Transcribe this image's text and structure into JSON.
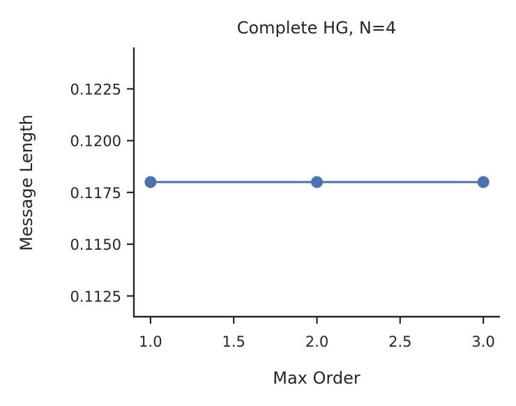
{
  "chart_data": {
    "type": "line",
    "title": "Complete HG, N=4",
    "xlabel": "Max Order",
    "ylabel": "Message Length",
    "x": [
      1.0,
      2.0,
      3.0
    ],
    "series": [
      {
        "values": [
          0.118,
          0.118,
          0.118
        ],
        "color": "#4c72b0",
        "marker": "circle"
      }
    ],
    "xlim": [
      0.9,
      3.1
    ],
    "ylim": [
      0.1115,
      0.1245
    ],
    "xticks": [
      1.0,
      1.5,
      2.0,
      2.5,
      3.0
    ],
    "xtick_labels": [
      "1.0",
      "1.5",
      "2.0",
      "2.5",
      "3.0"
    ],
    "yticks": [
      0.1125,
      0.115,
      0.1175,
      0.12,
      0.1225
    ],
    "ytick_labels": [
      "0.1125",
      "0.1150",
      "0.1175",
      "0.1200",
      "0.1225"
    ],
    "grid": false,
    "legend": "none"
  }
}
